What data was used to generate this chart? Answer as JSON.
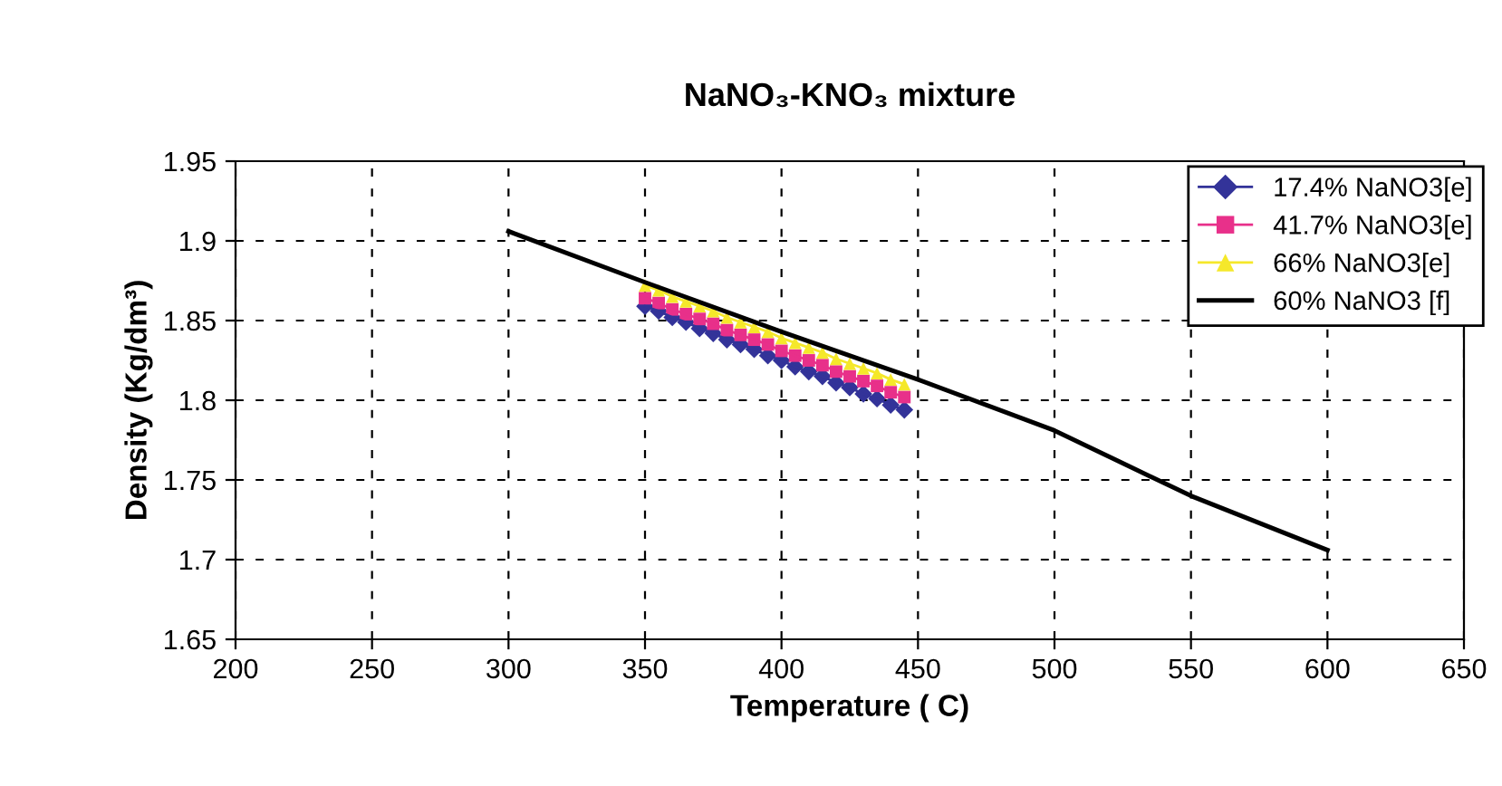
{
  "chart_data": {
    "type": "line",
    "title": "NaNO₃-KNO₃ mixture",
    "xlabel": "Temperature ( C)",
    "ylabel": "Density (Kg/dm³)",
    "xlim": [
      200,
      650
    ],
    "xticks": [
      200,
      250,
      300,
      350,
      400,
      450,
      500,
      550,
      600,
      650
    ],
    "ylim": [
      1.65,
      1.95
    ],
    "yticks": [
      1.65,
      1.7,
      1.75,
      1.8,
      1.85,
      1.9,
      1.95
    ],
    "grid": true,
    "legend": "top right",
    "series": [
      {
        "name": "17.4% NaNO3[e]",
        "color": "#333399",
        "marker": "diamond",
        "x": [
          350,
          355,
          360,
          365,
          370,
          375,
          380,
          385,
          390,
          395,
          400,
          405,
          410,
          415,
          420,
          425,
          430,
          435,
          440,
          445
        ],
        "values": [
          1.859,
          1.856,
          1.852,
          1.849,
          1.845,
          1.842,
          1.838,
          1.835,
          1.832,
          1.828,
          1.825,
          1.821,
          1.818,
          1.815,
          1.811,
          1.808,
          1.804,
          1.801,
          1.797,
          1.794
        ]
      },
      {
        "name": "41.7% NaNO3[e]",
        "color": "#e8308a",
        "marker": "square",
        "x": [
          350,
          355,
          360,
          365,
          370,
          375,
          380,
          385,
          390,
          395,
          400,
          405,
          410,
          415,
          420,
          425,
          430,
          435,
          440,
          445
        ],
        "values": [
          1.864,
          1.861,
          1.857,
          1.854,
          1.851,
          1.848,
          1.844,
          1.841,
          1.838,
          1.835,
          1.831,
          1.828,
          1.825,
          1.822,
          1.818,
          1.815,
          1.812,
          1.809,
          1.805,
          1.802
        ]
      },
      {
        "name": "66% NaNO3[e]",
        "color": "#f5e82a",
        "marker": "triangle",
        "x": [
          350,
          355,
          360,
          365,
          370,
          375,
          380,
          385,
          390,
          395,
          400,
          405,
          410,
          415,
          420,
          425,
          430,
          435,
          440,
          445
        ],
        "values": [
          1.872,
          1.869,
          1.865,
          1.862,
          1.859,
          1.856,
          1.852,
          1.849,
          1.846,
          1.843,
          1.839,
          1.836,
          1.833,
          1.83,
          1.826,
          1.823,
          1.82,
          1.817,
          1.813,
          1.81
        ]
      },
      {
        "name": "60% NaNO3 [f]",
        "color": "#000000",
        "marker": "none",
        "x": [
          300,
          350,
          400,
          450,
          500,
          550,
          600
        ],
        "values": [
          1.906,
          1.874,
          1.843,
          1.813,
          1.781,
          1.74,
          1.706
        ]
      }
    ]
  }
}
